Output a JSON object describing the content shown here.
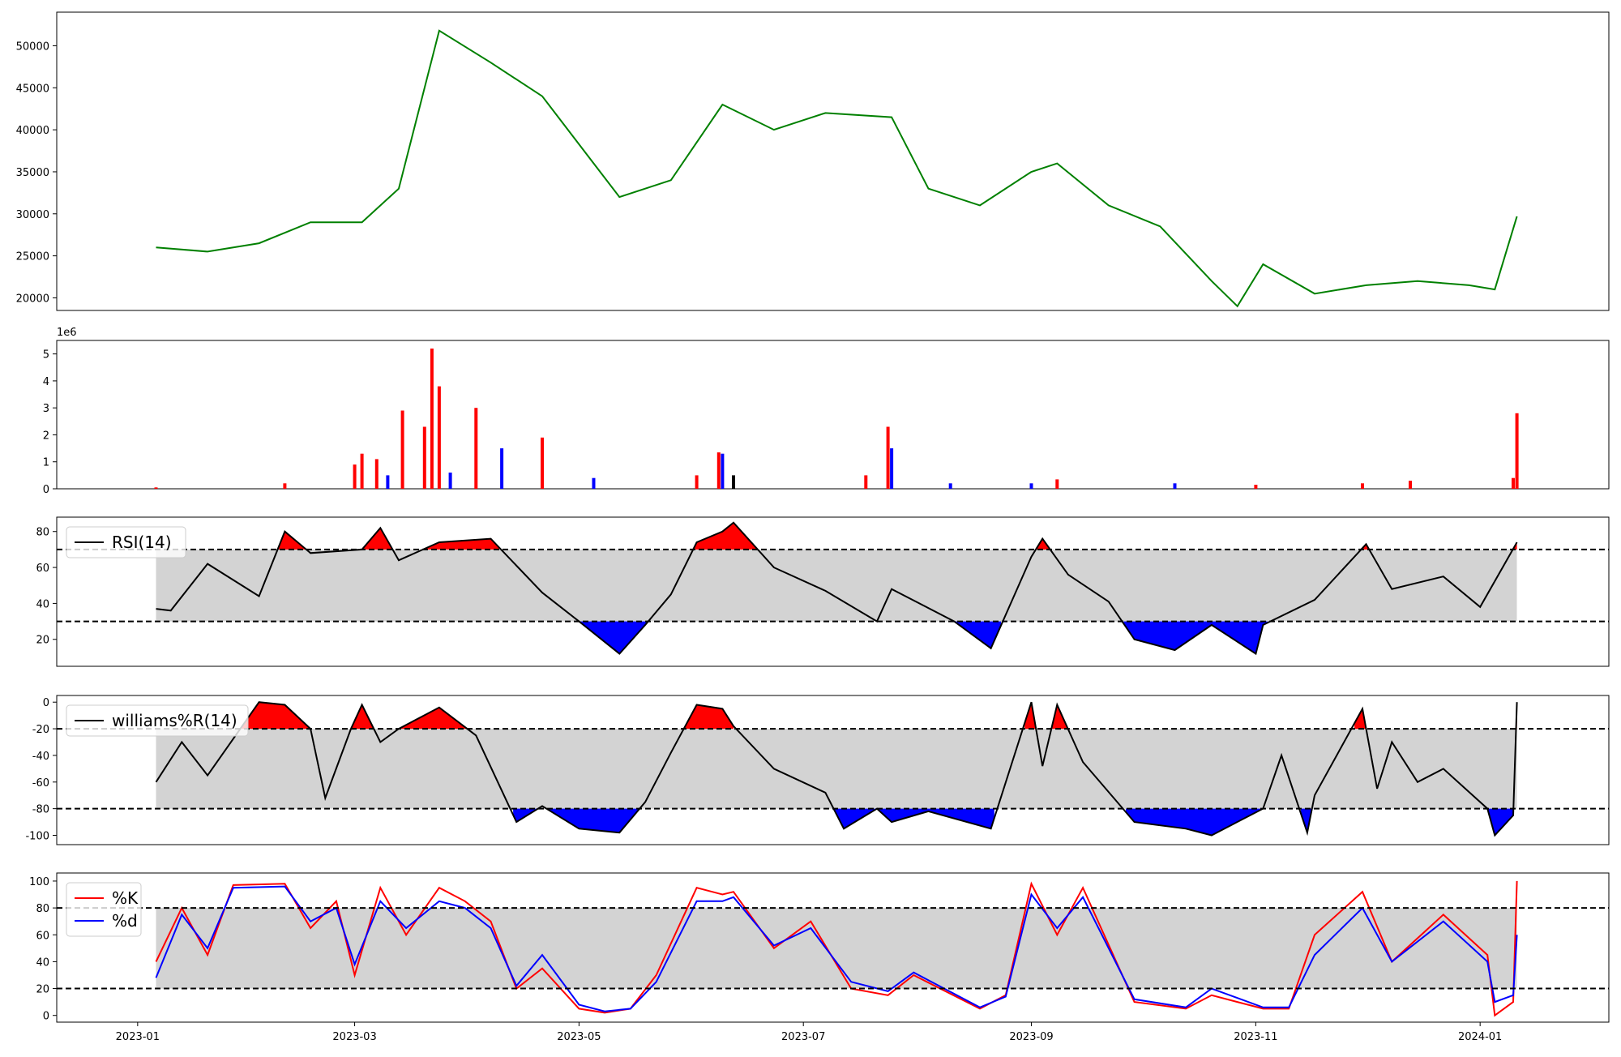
{
  "chart_data": [
    {
      "type": "line",
      "panel": "price",
      "x": [
        "2023-01-06",
        "2023-01-20",
        "2023-02-03",
        "2023-02-17",
        "2023-03-03",
        "2023-03-13",
        "2023-03-24",
        "2023-04-07",
        "2023-04-21",
        "2023-05-05",
        "2023-05-12",
        "2023-05-26",
        "2023-06-09",
        "2023-06-23",
        "2023-07-07",
        "2023-07-25",
        "2023-08-04",
        "2023-08-18",
        "2023-09-01",
        "2023-09-08",
        "2023-09-22",
        "2023-10-06",
        "2023-10-20",
        "2023-10-27",
        "2023-11-03",
        "2023-11-17",
        "2023-12-01",
        "2023-12-15",
        "2023-12-29",
        "2024-01-05",
        "2024-01-11"
      ],
      "series": [
        {
          "color": "#008000",
          "values": [
            26000,
            25500,
            26500,
            29000,
            29000,
            33000,
            51800,
            48000,
            44000,
            36000,
            32000,
            34000,
            43000,
            40000,
            42000,
            41500,
            33000,
            31000,
            35000,
            36000,
            31000,
            28500,
            22000,
            19000,
            24000,
            20500,
            21500,
            22000,
            21500,
            21000,
            29700
          ]
        }
      ],
      "ylim": [
        18500,
        54000
      ],
      "yticks": [
        20000,
        25000,
        30000,
        35000,
        40000,
        45000,
        50000
      ],
      "color": "#008000"
    },
    {
      "type": "bar",
      "panel": "volume",
      "scale_label": "1e6",
      "x": [
        "2023-01-06",
        "2023-02-10",
        "2023-03-01",
        "2023-03-03",
        "2023-03-07",
        "2023-03-10",
        "2023-03-14",
        "2023-03-20",
        "2023-03-22",
        "2023-03-24",
        "2023-03-27",
        "2023-04-03",
        "2023-04-10",
        "2023-04-21",
        "2023-05-05",
        "2023-06-02",
        "2023-06-08",
        "2023-06-09",
        "2023-06-12",
        "2023-07-18",
        "2023-07-24",
        "2023-07-25",
        "2023-08-10",
        "2023-09-01",
        "2023-09-08",
        "2023-10-10",
        "2023-11-01",
        "2023-11-30",
        "2023-12-13",
        "2024-01-10",
        "2024-01-11"
      ],
      "values": [
        0.05,
        0.2,
        0.9,
        1.3,
        1.1,
        0.5,
        2.9,
        2.3,
        5.2,
        3.8,
        0.6,
        3.0,
        1.5,
        1.9,
        0.4,
        0.5,
        1.35,
        1.3,
        0.5,
        0.5,
        2.3,
        1.5,
        0.2,
        0.2,
        0.35,
        0.2,
        0.15,
        0.2,
        0.3,
        0.4,
        2.8
      ],
      "colors": [
        "#ff0000",
        "#ff0000",
        "#ff0000",
        "#ff0000",
        "#ff0000",
        "#0000ff",
        "#ff0000",
        "#ff0000",
        "#ff0000",
        "#ff0000",
        "#0000ff",
        "#ff0000",
        "#0000ff",
        "#ff0000",
        "#0000ff",
        "#ff0000",
        "#ff0000",
        "#0000ff",
        "#000000",
        "#ff0000",
        "#ff0000",
        "#0000ff",
        "#0000ff",
        "#0000ff",
        "#ff0000",
        "#0000ff",
        "#ff0000",
        "#ff0000",
        "#ff0000",
        "#ff0000",
        "#ff0000"
      ],
      "ylim": [
        0,
        5.5
      ],
      "yticks": [
        0,
        1,
        2,
        3,
        4,
        5
      ]
    },
    {
      "type": "line",
      "panel": "rsi",
      "series": [
        {
          "name": "RSI(14)",
          "color": "#000000",
          "x": [
            "2023-01-06",
            "2023-01-10",
            "2023-01-20",
            "2023-02-03",
            "2023-02-10",
            "2023-02-17",
            "2023-03-03",
            "2023-03-08",
            "2023-03-13",
            "2023-03-24",
            "2023-04-07",
            "2023-04-21",
            "2023-05-01",
            "2023-05-12",
            "2023-05-19",
            "2023-05-26",
            "2023-06-02",
            "2023-06-09",
            "2023-06-12",
            "2023-06-23",
            "2023-07-07",
            "2023-07-21",
            "2023-07-25",
            "2023-08-11",
            "2023-08-21",
            "2023-09-01",
            "2023-09-04",
            "2023-09-11",
            "2023-09-22",
            "2023-09-29",
            "2023-10-10",
            "2023-10-20",
            "2023-11-01",
            "2023-11-03",
            "2023-11-17",
            "2023-12-01",
            "2023-12-08",
            "2023-12-22",
            "2024-01-01",
            "2024-01-11"
          ],
          "values": [
            37,
            36,
            62,
            44,
            80,
            68,
            70,
            82,
            64,
            74,
            76,
            46,
            30,
            12,
            28,
            45,
            74,
            80,
            85,
            60,
            47,
            30,
            48,
            30,
            15,
            66,
            76,
            56,
            41,
            20,
            14,
            28,
            12,
            28,
            42,
            73,
            48,
            55,
            38,
            74
          ]
        }
      ],
      "ylim": [
        5,
        88
      ],
      "yticks": [
        20,
        40,
        60,
        80
      ],
      "hlines": [
        30,
        70
      ],
      "legend": "upper left"
    },
    {
      "type": "line",
      "panel": "williams",
      "series": [
        {
          "name": "williams%R(14)",
          "color": "#000000",
          "x": [
            "2023-01-06",
            "2023-01-13",
            "2023-01-20",
            "2023-02-03",
            "2023-02-10",
            "2023-02-17",
            "2023-02-21",
            "2023-02-28",
            "2023-03-03",
            "2023-03-08",
            "2023-03-13",
            "2023-03-24",
            "2023-04-03",
            "2023-04-14",
            "2023-04-21",
            "2023-05-01",
            "2023-05-12",
            "2023-05-19",
            "2023-05-26",
            "2023-06-02",
            "2023-06-09",
            "2023-06-12",
            "2023-06-23",
            "2023-07-07",
            "2023-07-12",
            "2023-07-21",
            "2023-07-25",
            "2023-08-04",
            "2023-08-21",
            "2023-09-01",
            "2023-09-04",
            "2023-09-08",
            "2023-09-15",
            "2023-09-29",
            "2023-10-13",
            "2023-10-20",
            "2023-11-03",
            "2023-11-08",
            "2023-11-15",
            "2023-11-17",
            "2023-11-30",
            "2023-12-04",
            "2023-12-08",
            "2023-12-15",
            "2023-12-22",
            "2024-01-03",
            "2024-01-05",
            "2024-01-10",
            "2024-01-11"
          ],
          "values": [
            -60,
            -30,
            -55,
            0,
            -2,
            -20,
            -72,
            -20,
            -2,
            -30,
            -20,
            -4,
            -25,
            -90,
            -78,
            -95,
            -98,
            -75,
            -38,
            -2,
            -5,
            -18,
            -50,
            -68,
            -95,
            -80,
            -90,
            -82,
            -95,
            0,
            -48,
            -2,
            -45,
            -90,
            -95,
            -100,
            -80,
            -40,
            -98,
            -70,
            -5,
            -65,
            -30,
            -60,
            -50,
            -80,
            -100,
            -85,
            0
          ]
        }
      ],
      "ylim": [
        -107,
        5
      ],
      "yticks": [
        -100,
        -80,
        -60,
        -40,
        -20,
        0
      ],
      "hlines": [
        -80,
        -20
      ],
      "legend": "upper left"
    },
    {
      "type": "line",
      "panel": "stoch",
      "x": [
        "2023-01-06",
        "2023-01-13",
        "2023-01-20",
        "2023-01-27",
        "2023-02-10",
        "2023-02-17",
        "2023-02-24",
        "2023-03-01",
        "2023-03-08",
        "2023-03-15",
        "2023-03-24",
        "2023-03-31",
        "2023-04-07",
        "2023-04-14",
        "2023-04-21",
        "2023-05-01",
        "2023-05-08",
        "2023-05-15",
        "2023-05-22",
        "2023-06-02",
        "2023-06-09",
        "2023-06-12",
        "2023-06-23",
        "2023-07-03",
        "2023-07-14",
        "2023-07-24",
        "2023-07-31",
        "2023-08-18",
        "2023-08-25",
        "2023-09-01",
        "2023-09-08",
        "2023-09-15",
        "2023-09-29",
        "2023-10-13",
        "2023-10-20",
        "2023-11-03",
        "2023-11-10",
        "2023-11-17",
        "2023-11-30",
        "2023-12-08",
        "2023-12-22",
        "2024-01-03",
        "2024-01-05",
        "2024-01-10",
        "2024-01-11"
      ],
      "series": [
        {
          "name": "%K",
          "color": "#ff0000",
          "values": [
            40,
            80,
            45,
            97,
            98,
            65,
            85,
            30,
            95,
            60,
            95,
            85,
            70,
            20,
            35,
            5,
            2,
            5,
            30,
            95,
            90,
            92,
            50,
            70,
            20,
            15,
            30,
            5,
            15,
            98,
            60,
            95,
            10,
            5,
            15,
            5,
            5,
            60,
            92,
            40,
            75,
            45,
            0,
            10,
            100
          ]
        },
        {
          "name": "%d",
          "color": "#0000ff",
          "values": [
            28,
            75,
            50,
            95,
            96,
            70,
            80,
            38,
            85,
            65,
            85,
            80,
            65,
            22,
            45,
            8,
            3,
            5,
            25,
            85,
            85,
            88,
            52,
            65,
            25,
            18,
            32,
            6,
            14,
            90,
            65,
            88,
            12,
            6,
            20,
            6,
            6,
            45,
            80,
            40,
            70,
            40,
            10,
            15,
            60
          ]
        }
      ],
      "ylim": [
        -5,
        106
      ],
      "yticks": [
        0,
        20,
        40,
        60,
        80,
        100
      ],
      "hlines": [
        20,
        80
      ],
      "legend": "upper left"
    }
  ],
  "xaxis": {
    "range": [
      "2022-12-10",
      "2024-02-05"
    ],
    "ticks": [
      "2023-01",
      "2023-03",
      "2023-05",
      "2023-07",
      "2023-09",
      "2023-11",
      "2024-01"
    ]
  },
  "styles": {
    "band_fill": "#d3d3d3",
    "over_fill": "#ff0000",
    "under_fill": "#0000ff",
    "up_color": "#ff0000",
    "down_color": "#0000ff"
  }
}
